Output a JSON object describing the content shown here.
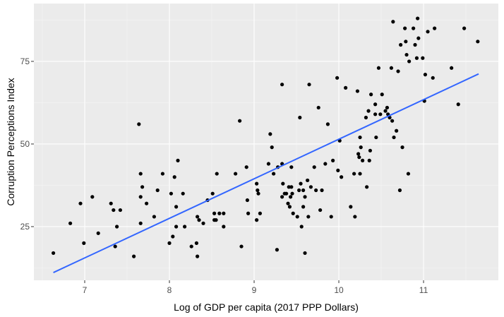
{
  "chart_data": {
    "type": "scatter",
    "x_label": "Log of GDP per capita (2017 PPP Dollars)",
    "y_label": "Corruption Perceptions Index",
    "xlim": [
      6.4,
      11.883
    ],
    "ylim": [
      8.76,
      92.5
    ],
    "xticks": [
      7,
      8,
      9,
      10,
      11
    ],
    "yticks": [
      25,
      50,
      75
    ],
    "x_minor_ticks": [
      6.5,
      7.5,
      8.5,
      9.5,
      10.5,
      11.5
    ],
    "y_minor_ticks": [
      12.5,
      37.5,
      62.5,
      87.5
    ],
    "grid": true,
    "series": [
      {
        "color": "#000000",
        "x": [
          6.63,
          6.83,
          6.95,
          6.99,
          7.09,
          7.16,
          7.31,
          7.34,
          7.36,
          7.38,
          7.42,
          7.58,
          7.64,
          7.66,
          7.66,
          7.68,
          7.66,
          7.73,
          7.82,
          7.86,
          7.92,
          8.0,
          8.02,
          8.04,
          8.06,
          8.08,
          8.08,
          8.1,
          8.16,
          8.18,
          8.26,
          8.32,
          8.33,
          8.33,
          8.35,
          8.4,
          8.45,
          8.51,
          8.53,
          8.55,
          8.53,
          8.56,
          8.59,
          8.64,
          8.64,
          8.78,
          8.83,
          8.85,
          8.91,
          8.92,
          8.93,
          9.03,
          9.03,
          9.04,
          9.05,
          9.07,
          9.17,
          9.19,
          9.21,
          9.23,
          9.28,
          9.27,
          9.33,
          9.33,
          9.33,
          9.34,
          9.36,
          9.38,
          9.4,
          9.41,
          9.42,
          9.43,
          9.44,
          9.44,
          9.45,
          9.46,
          9.51,
          9.53,
          9.54,
          9.55,
          9.56,
          9.58,
          9.58,
          9.6,
          9.6,
          9.63,
          9.64,
          9.65,
          9.67,
          9.71,
          9.73,
          9.76,
          9.78,
          9.8,
          9.84,
          9.87,
          9.91,
          9.93,
          9.98,
          9.99,
          10.01,
          10.03,
          10.08,
          10.14,
          10.18,
          10.19,
          10.22,
          10.23,
          10.24,
          10.25,
          10.25,
          10.26,
          10.28,
          10.32,
          10.33,
          10.35,
          10.36,
          10.37,
          10.38,
          10.43,
          10.43,
          10.44,
          10.47,
          10.49,
          10.51,
          10.55,
          10.57,
          10.58,
          10.6,
          10.62,
          10.63,
          10.64,
          10.65,
          10.68,
          10.7,
          10.72,
          10.73,
          10.75,
          10.78,
          10.79,
          10.8,
          10.82,
          10.83,
          10.88,
          10.9,
          10.92,
          10.93,
          10.94,
          10.99,
          11.01,
          11.02,
          11.05,
          11.11,
          11.13,
          11.33,
          11.41,
          11.48,
          11.64
        ],
        "values": [
          17,
          26,
          32,
          20,
          34,
          23,
          32,
          30,
          19,
          25,
          30,
          16,
          56,
          41,
          34,
          37,
          26,
          32,
          28,
          36,
          41,
          20,
          35,
          22,
          40,
          25,
          31,
          45,
          35,
          25,
          19,
          20,
          16,
          28,
          27,
          26,
          33,
          35,
          29,
          27,
          27,
          41,
          29,
          25,
          29,
          41,
          57,
          19,
          43,
          33,
          29,
          27,
          38,
          36,
          35,
          29,
          44,
          53,
          49,
          41,
          43,
          18,
          44,
          34,
          68,
          38,
          35,
          35,
          32,
          37,
          31,
          34,
          43,
          37,
          35,
          29,
          28,
          36,
          58,
          38,
          25,
          36,
          31,
          17,
          34,
          39,
          28,
          68,
          37,
          43,
          36,
          61,
          30,
          36,
          44,
          56,
          28,
          45,
          70,
          42,
          51,
          40,
          67,
          31,
          41,
          28,
          66,
          47,
          46,
          52,
          41,
          49,
          45,
          58,
          37,
          60,
          45,
          48,
          65,
          62,
          59,
          52,
          73,
          59,
          65,
          60,
          61,
          59,
          58,
          73,
          57,
          87,
          52,
          54,
          72,
          36,
          80,
          49,
          85,
          81,
          77,
          41,
          75,
          85,
          80,
          76,
          88,
          82,
          76,
          63,
          71,
          84,
          70,
          85,
          73,
          62,
          85,
          81
        ]
      }
    ],
    "trend": {
      "color": "#3366ff",
      "x": [
        6.63,
        11.65
      ],
      "values": [
        11.1,
        71.2
      ]
    }
  }
}
